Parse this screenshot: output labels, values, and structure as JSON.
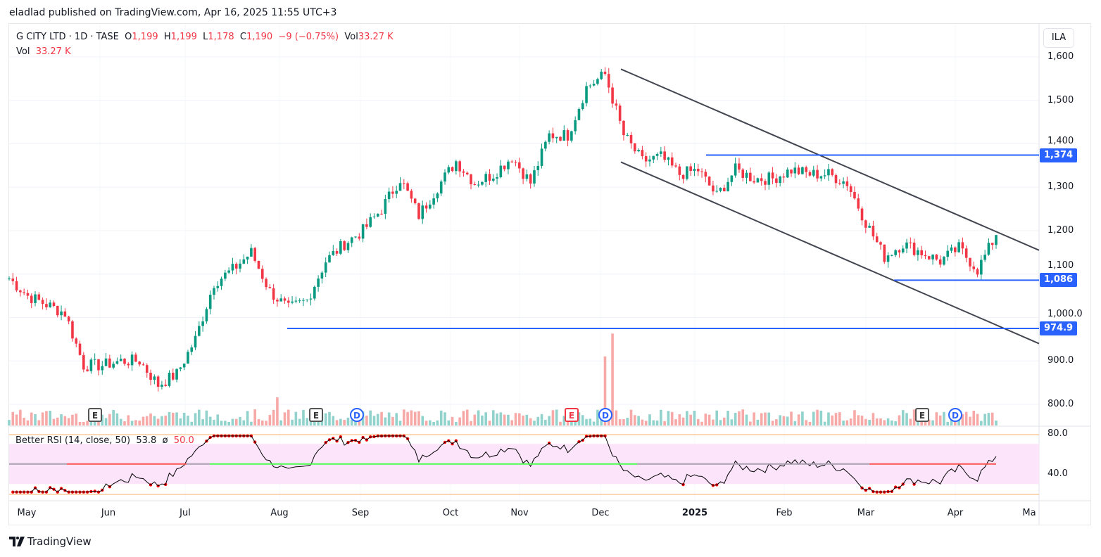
{
  "publish_line": "eladlad published on TradingView.com, Apr 16, 2025 11:55 UTC+3",
  "legend": {
    "symbol": "G CITY LTD · 1D · TASE",
    "o_label": "O",
    "o": "1,199",
    "h_label": "H",
    "h": "1,199",
    "l_label": "L",
    "l": "1,178",
    "c_label": "C",
    "c": "1,190",
    "change": "−9 (−0.75%)",
    "vol_label": "Vol",
    "vol": "33.27 K",
    "vol_row_label": "Vol",
    "vol_row_value": "33.27 K"
  },
  "rsi_legend": {
    "name": "Better RSI (14, close, 50)",
    "value": "53.8",
    "sym": "ø",
    "ma": "50.0"
  },
  "currency": "ILA",
  "price_ticks": [
    "1,600",
    "1,500",
    "1,400",
    "1,300",
    "1,200",
    "1,100",
    "1,000.0",
    "900.0",
    "800.0"
  ],
  "price_tick_values": [
    1600,
    1500,
    1400,
    1300,
    1200,
    1100,
    1000,
    900,
    800
  ],
  "rsi_ticks": [
    "80.0",
    "40.0"
  ],
  "price_tags": [
    {
      "label": "1,374",
      "value": 1374
    },
    {
      "label": "1,086",
      "value": 1086
    },
    {
      "label": "974.9",
      "value": 974.9
    }
  ],
  "months": [
    "May",
    "Jun",
    "Jul",
    "Aug",
    "Sep",
    "Oct",
    "Nov",
    "Dec",
    "2025",
    "Feb",
    "Mar",
    "Apr",
    "Ma"
  ],
  "events": [
    {
      "type": "E",
      "label": "E",
      "month": "May"
    },
    {
      "type": "E",
      "label": "E",
      "month": "Aug"
    },
    {
      "type": "D",
      "label": "D",
      "month": "Aug"
    },
    {
      "type": "Er",
      "label": "E",
      "month": "Nov"
    },
    {
      "type": "D",
      "label": "D",
      "month": "Dec"
    },
    {
      "type": "E",
      "label": "E",
      "month": "Mar"
    },
    {
      "type": "D",
      "label": "D",
      "month": "Mar"
    }
  ],
  "brand": "TradingView",
  "colors": {
    "up": "#089981",
    "down": "#f23645",
    "up_vol": "#92d2cc",
    "down_vol": "#f7a9a7",
    "line_blue": "#2962ff",
    "trend": "#434651",
    "rsi_band": "#fce4fb"
  },
  "chart_data": {
    "type": "candlestick",
    "title": "G CITY LTD · 1D · TASE",
    "weekly_closes": [
      1090,
      1050,
      1030,
      1010,
      890,
      890,
      900,
      900,
      845,
      870,
      950,
      1080,
      1110,
      1150,
      1060,
      1020,
      1040,
      1130,
      1170,
      1200,
      1250,
      1320,
      1235,
      1300,
      1360,
      1310,
      1330,
      1370,
      1310,
      1420,
      1420,
      1530,
      1560,
      1420,
      1360,
      1370,
      1330,
      1340,
      1280,
      1340,
      1320,
      1320,
      1340,
      1330,
      1330,
      1310,
      1220,
      1140,
      1170,
      1150,
      1130,
      1160,
      1110,
      1190
    ],
    "horizontal_levels": [
      1374,
      1086,
      974.9
    ],
    "channel": {
      "upper": [
        1572,
        1155
      ],
      "lower": [
        1358,
        940
      ]
    },
    "ylim": [
      760,
      1640
    ],
    "rsi": {
      "length": 14,
      "ma": 50,
      "range": [
        20,
        100
      ],
      "upper_band": 70,
      "lower_band": 30
    }
  }
}
